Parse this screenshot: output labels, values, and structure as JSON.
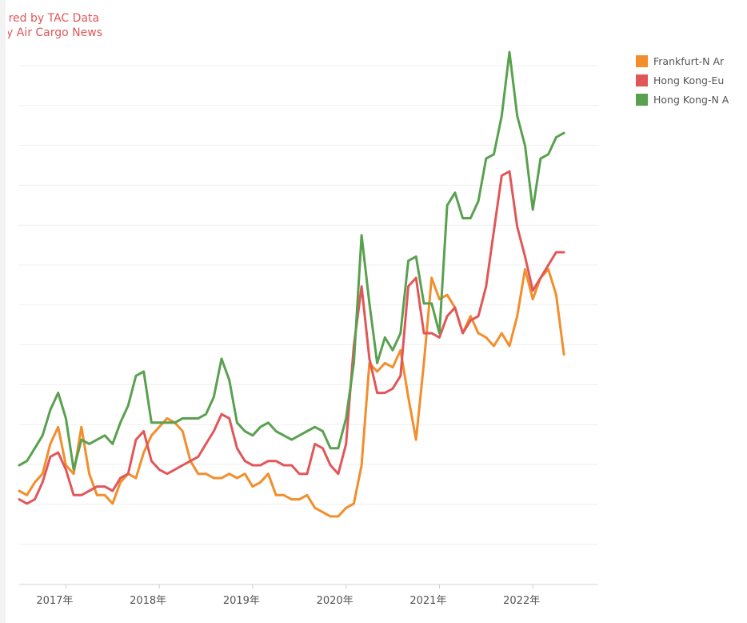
{
  "caption": {
    "line1": "ered by TAC Data",
    "line2": "y Air Cargo News"
  },
  "legend": [
    {
      "label": "Frankfurt-N Ar",
      "color": "#f28e2b"
    },
    {
      "label": "Hong Kong-Eu",
      "color": "#e15759"
    },
    {
      "label": "Hong Kong-N A",
      "color": "#59a14f"
    }
  ],
  "chart_data": {
    "type": "line",
    "x_tick_labels": [
      "2017年",
      "2018年",
      "2019年",
      "2020年",
      "2021年",
      "2022年"
    ],
    "x": [
      "2016-07",
      "2016-08",
      "2016-09",
      "2016-10",
      "2016-11",
      "2016-12",
      "2017-01",
      "2017-02",
      "2017-03",
      "2017-04",
      "2017-05",
      "2017-06",
      "2017-07",
      "2017-08",
      "2017-09",
      "2017-10",
      "2017-11",
      "2017-12",
      "2018-01",
      "2018-02",
      "2018-03",
      "2018-04",
      "2018-05",
      "2018-06",
      "2018-07",
      "2018-08",
      "2018-09",
      "2018-10",
      "2018-11",
      "2018-12",
      "2019-01",
      "2019-02",
      "2019-03",
      "2019-04",
      "2019-05",
      "2019-06",
      "2019-07",
      "2019-08",
      "2019-09",
      "2019-10",
      "2019-11",
      "2019-12",
      "2020-01",
      "2020-02",
      "2020-03",
      "2020-04",
      "2020-05",
      "2020-06",
      "2020-07",
      "2020-08",
      "2020-09",
      "2020-10",
      "2020-11",
      "2020-12",
      "2021-01",
      "2021-02",
      "2021-03",
      "2021-04",
      "2021-05",
      "2021-06",
      "2021-07",
      "2021-08",
      "2021-09",
      "2021-10",
      "2021-11",
      "2021-12",
      "2022-01",
      "2022-02",
      "2022-03",
      "2022-04",
      "2022-05"
    ],
    "gridlines": 14,
    "series": [
      {
        "name": "Frankfurt-N Ar",
        "color": "#f28e2b",
        "values": [
          2.2,
          2.1,
          2.4,
          2.6,
          3.3,
          3.7,
          2.8,
          2.6,
          3.7,
          2.6,
          2.1,
          2.1,
          1.9,
          2.4,
          2.6,
          2.5,
          3.1,
          3.5,
          3.7,
          3.9,
          3.8,
          3.6,
          2.9,
          2.6,
          2.6,
          2.5,
          2.5,
          2.6,
          2.5,
          2.6,
          2.3,
          2.4,
          2.6,
          2.1,
          2.1,
          2.0,
          2.0,
          2.1,
          1.8,
          1.7,
          1.6,
          1.6,
          1.8,
          1.9,
          2.8,
          5.2,
          5.0,
          5.2,
          5.1,
          5.5,
          4.4,
          3.4,
          5.2,
          7.2,
          6.7,
          6.8,
          6.5,
          5.9,
          6.3,
          5.9,
          5.8,
          5.6,
          5.9,
          5.6,
          6.3,
          7.4,
          6.7,
          7.2,
          7.4,
          6.8,
          5.4
        ],
        "points": 71
      },
      {
        "name": "Hong Kong-Eu",
        "color": "#e15759",
        "values": [
          2.0,
          1.9,
          2.0,
          2.4,
          3.0,
          3.1,
          2.7,
          2.1,
          2.1,
          2.2,
          2.3,
          2.3,
          2.2,
          2.5,
          2.6,
          3.4,
          3.6,
          2.9,
          2.7,
          2.6,
          2.7,
          2.8,
          2.9,
          3.0,
          3.3,
          3.6,
          4.0,
          3.9,
          3.2,
          2.9,
          2.8,
          2.8,
          2.9,
          2.9,
          2.8,
          2.8,
          2.6,
          2.6,
          3.3,
          3.2,
          2.8,
          2.6,
          3.3,
          5.6,
          7.0,
          5.3,
          4.5,
          4.5,
          4.6,
          4.9,
          7.0,
          7.2,
          5.9,
          5.9,
          5.8,
          6.3,
          6.5,
          5.9,
          6.2,
          6.3,
          7.0,
          8.3,
          9.6,
          9.7,
          8.4,
          7.7,
          6.9,
          7.2,
          7.5,
          7.8,
          7.8
        ],
        "points": 71
      },
      {
        "name": "Hong Kong-N A",
        "color": "#59a14f",
        "values": [
          2.8,
          2.9,
          3.2,
          3.5,
          4.1,
          4.5,
          3.9,
          2.7,
          3.4,
          3.3,
          3.4,
          3.5,
          3.3,
          3.8,
          4.2,
          4.9,
          5.0,
          3.8,
          3.8,
          3.8,
          3.8,
          3.9,
          3.9,
          3.9,
          4.0,
          4.4,
          5.3,
          4.8,
          3.8,
          3.6,
          3.5,
          3.7,
          3.8,
          3.6,
          3.5,
          3.4,
          3.5,
          3.6,
          3.7,
          3.6,
          3.2,
          3.2,
          3.9,
          5.2,
          8.2,
          6.6,
          5.2,
          5.8,
          5.5,
          5.9,
          7.6,
          7.7,
          6.6,
          6.6,
          5.9,
          8.9,
          9.2,
          8.6,
          8.6,
          9.0,
          10.0,
          10.1,
          11.0,
          12.5,
          11.0,
          10.3,
          8.8,
          10.0,
          10.1,
          10.5,
          10.6
        ],
        "points": 71
      }
    ]
  }
}
